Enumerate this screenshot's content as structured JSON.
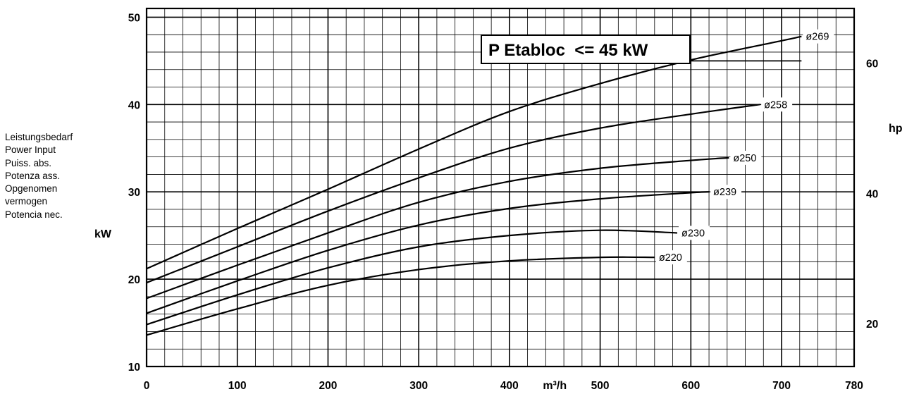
{
  "chart_data": {
    "type": "line",
    "title": "P Etabloc  <= 45 kW",
    "ylabel_lines": [
      "Leistungsbedarf",
      "Power Input",
      "Puiss. abs.",
      "Potenza ass.",
      "Opgenomen",
      "vermogen",
      "Potencia nec."
    ],
    "ylabel_unit": "kW",
    "y2label_unit": "hp",
    "xlabel_unit": "m³/h",
    "xlim": [
      0,
      780
    ],
    "ylim": [
      10,
      51
    ],
    "x_ticks": [
      "0",
      "100",
      "200",
      "300",
      "400",
      "500",
      "600",
      "700",
      "780"
    ],
    "y_ticks": [
      "10",
      "20",
      "30",
      "40",
      "50"
    ],
    "y2_ticks": [
      "20",
      "40",
      "60"
    ],
    "grid": true,
    "limit_line": {
      "x": [
        545,
        722
      ],
      "y": 45
    },
    "series": [
      {
        "name": "ø269",
        "x": [
          0,
          100,
          200,
          300,
          400,
          500,
          600,
          700,
          722
        ],
        "y": [
          21.2,
          25.8,
          30.3,
          34.9,
          39.2,
          42.4,
          45.1,
          47.3,
          47.8
        ]
      },
      {
        "name": "ø258",
        "x": [
          0,
          100,
          200,
          300,
          400,
          500,
          600,
          676
        ],
        "y": [
          19.6,
          23.7,
          27.8,
          31.6,
          35.0,
          37.3,
          38.9,
          40.0
        ]
      },
      {
        "name": "ø250",
        "x": [
          0,
          100,
          200,
          300,
          400,
          500,
          600,
          642
        ],
        "y": [
          17.8,
          21.6,
          25.3,
          28.8,
          31.2,
          32.7,
          33.6,
          33.9
        ]
      },
      {
        "name": "ø239",
        "x": [
          0,
          100,
          200,
          300,
          400,
          500,
          600,
          620
        ],
        "y": [
          16.1,
          19.8,
          23.3,
          26.2,
          28.1,
          29.2,
          29.9,
          30.0
        ]
      },
      {
        "name": "ø230",
        "x": [
          0,
          100,
          200,
          300,
          400,
          500,
          585
        ],
        "y": [
          14.8,
          18.2,
          21.3,
          23.7,
          25.0,
          25.6,
          25.3
        ]
      },
      {
        "name": "ø220",
        "x": [
          0,
          100,
          200,
          300,
          400,
          500,
          560
        ],
        "y": [
          13.6,
          16.6,
          19.3,
          21.1,
          22.1,
          22.5,
          22.5
        ]
      }
    ]
  }
}
